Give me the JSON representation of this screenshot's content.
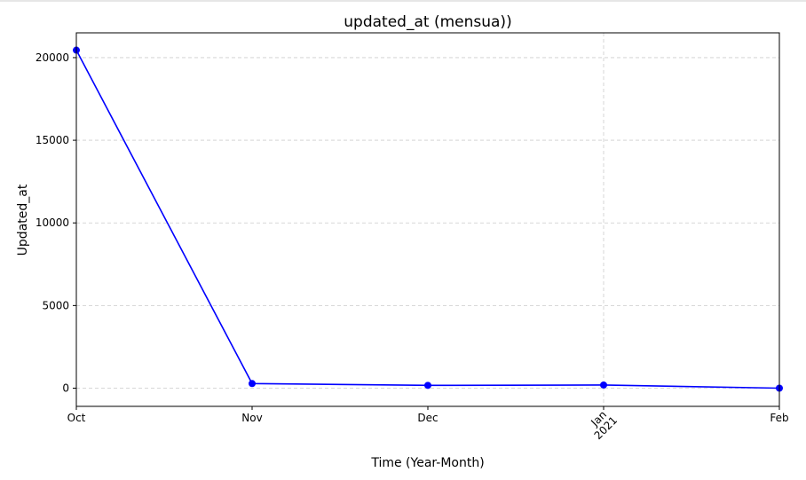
{
  "chart_data": {
    "type": "line",
    "title": "updated_at  (mensua))",
    "xlabel": "Time (Year-Month)",
    "ylabel": "Updated_at",
    "x_ticks": [
      {
        "label": "Oct",
        "sub": ""
      },
      {
        "label": "Nov",
        "sub": ""
      },
      {
        "label": "Dec",
        "sub": ""
      },
      {
        "label": "Jan",
        "sub": "2021"
      },
      {
        "label": "Feb",
        "sub": ""
      }
    ],
    "x": [
      "2020-10",
      "2020-11",
      "2020-12",
      "2021-01",
      "2021-02"
    ],
    "values": [
      20450,
      280,
      170,
      190,
      0
    ],
    "ylim": [
      -1100,
      21500
    ],
    "y_ticks": [
      0,
      5000,
      10000,
      15000,
      20000
    ],
    "grid": true,
    "colors": {
      "line": "#0000ff",
      "grid": "#cccccc",
      "axis": "#000000"
    }
  }
}
